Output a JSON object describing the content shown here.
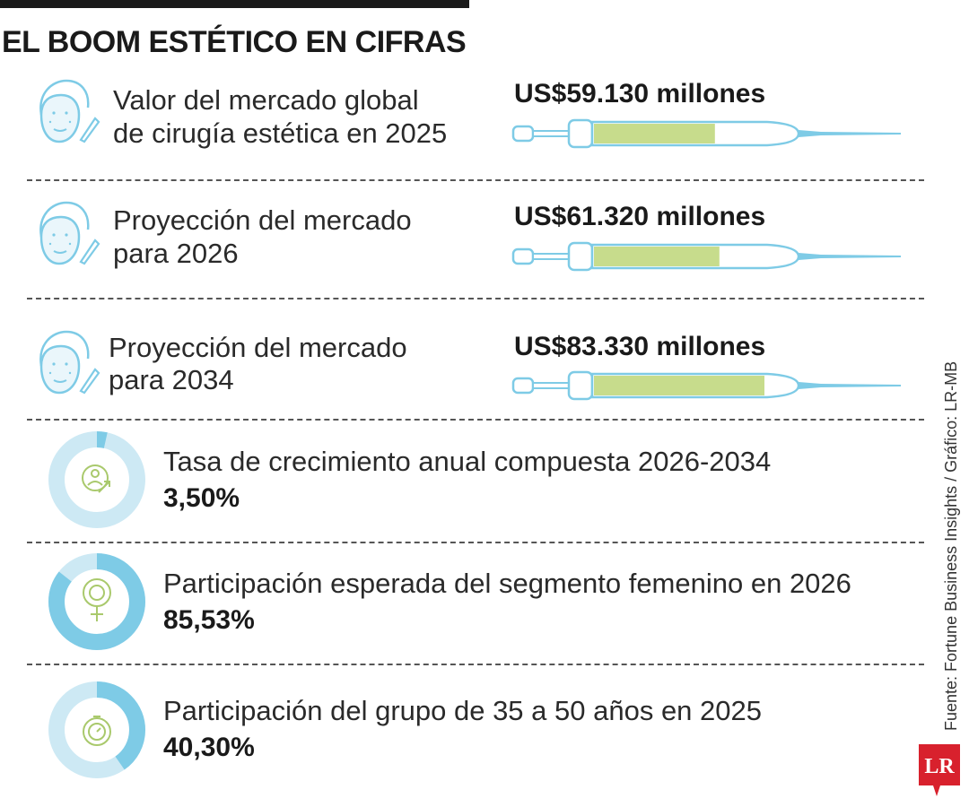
{
  "header": {
    "title": "EL BOOM ESTÉTICO EN CIFRAS"
  },
  "chart_data": {
    "type": "infographic",
    "title": "EL BOOM ESTÉTICO EN CIFRAS",
    "syringe_fill_max": 100000,
    "market_values": [
      {
        "label_line1": "Valor del mercado global",
        "label_line2": "de cirugía estética en 2025",
        "value_text": "US$59.130 millones",
        "value": 59130
      },
      {
        "label_line1": "Proyección del mercado",
        "label_line2": "para 2026",
        "value_text": "US$61.320 millones",
        "value": 61320
      },
      {
        "label_line1": "Proyección del mercado",
        "label_line2": "para 2034",
        "value_text": "US$83.330 millones",
        "value": 83330
      }
    ],
    "percentages": [
      {
        "label": "Tasa de crecimiento anual compuesta 2026-2034",
        "value_text": "3,50%",
        "value": 3.5,
        "icon": "growth-person-icon"
      },
      {
        "label": "Participación esperada del segmento femenino en 2026",
        "value_text": "85,53%",
        "value": 85.53,
        "icon": "female-symbol-icon"
      },
      {
        "label": "Participación del grupo de 35 a 50 años en 2025",
        "value_text": "40,30%",
        "value": 40.3,
        "icon": "stopwatch-icon"
      }
    ]
  },
  "footer": {
    "source": "Fuente: Fortune Business Insights / Gráfico: LR-MB",
    "logo_text": "LR"
  },
  "colors": {
    "accent_blue": "#7ecbe6",
    "light_blue": "#cde9f4",
    "fill_green": "#c7dc8c",
    "icon_green": "#a9c96c",
    "logo_red": "#d8212d"
  }
}
